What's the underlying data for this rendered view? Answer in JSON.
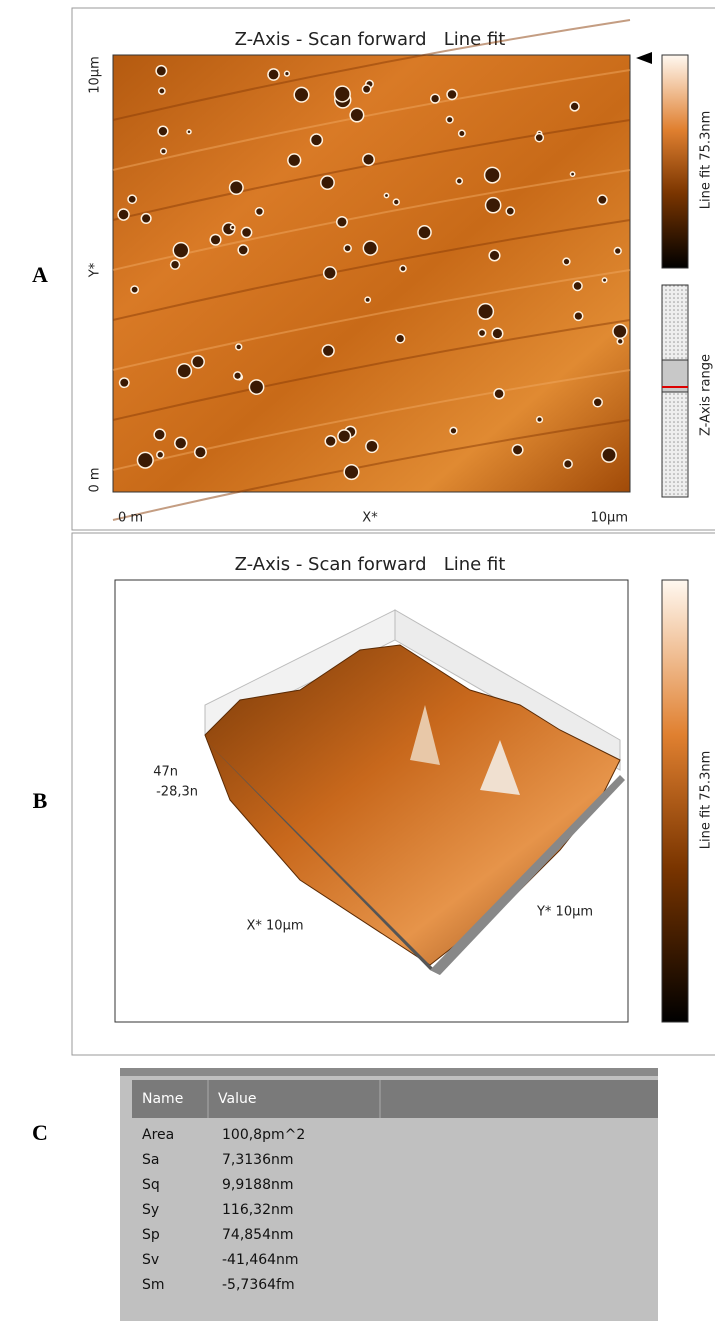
{
  "panels": [
    {
      "label": "A",
      "title": "Z-Axis - Scan forward   Line fit",
      "y_top": "10µm",
      "y_label": "Y*",
      "y_bottom": "0 m",
      "x_left": "0 m",
      "x_label": "X*",
      "x_right": "10µm",
      "colorbar_label": "Line fit 75.3nm",
      "range_label": "Z-Axis range"
    },
    {
      "label": "B",
      "title": "Z-Axis - Scan forward   Line fit",
      "z_top": "47n",
      "z_bottom": "-28,3n",
      "x_label": "X* 10µm",
      "y_label": "Y* 10µm",
      "colorbar_label": "Line fit 75.3nm"
    },
    {
      "label": "C",
      "table": {
        "columns": [
          "Name",
          "Value"
        ],
        "rows": [
          [
            "Area",
            "100,8pm^2"
          ],
          [
            "Sa",
            "7,3136nm"
          ],
          [
            "Sq",
            "9,9188nm"
          ],
          [
            "Sy",
            "116,32nm"
          ],
          [
            "Sp",
            "74,854nm"
          ],
          [
            "Sv",
            "-41,464nm"
          ],
          [
            "Sm",
            "-5,7364fm"
          ]
        ]
      }
    }
  ]
}
